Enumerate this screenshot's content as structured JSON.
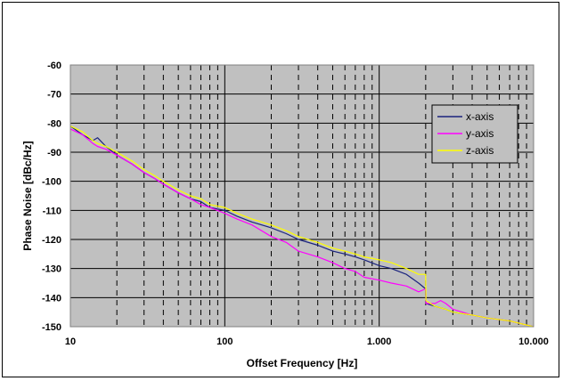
{
  "chart_data": {
    "type": "line",
    "title": "",
    "xlabel": "Offset Frequency [Hz]",
    "ylabel": "Phase Noise [dBc/Hz]",
    "xscale": "log",
    "xlim": [
      10,
      10000
    ],
    "ylim": [
      -150,
      -60
    ],
    "x_tick_labels": [
      "10",
      "100",
      "1.000",
      "10.000"
    ],
    "y_tick_labels": [
      "-60",
      "-70",
      "-80",
      "-90",
      "-100",
      "-110",
      "-120",
      "-130",
      "-140",
      "-150"
    ],
    "grid": true,
    "legend_position": "top-right",
    "series": [
      {
        "name": "x-axis",
        "color": "#1a237e",
        "points": [
          [
            10,
            -81
          ],
          [
            12,
            -84
          ],
          [
            14,
            -86
          ],
          [
            15,
            -85
          ],
          [
            17,
            -88
          ],
          [
            20,
            -91
          ],
          [
            25,
            -94
          ],
          [
            30,
            -97
          ],
          [
            35,
            -99
          ],
          [
            40,
            -101
          ],
          [
            50,
            -104
          ],
          [
            60,
            -106
          ],
          [
            70,
            -107
          ],
          [
            80,
            -109
          ],
          [
            100,
            -110
          ],
          [
            120,
            -112
          ],
          [
            150,
            -114
          ],
          [
            200,
            -116
          ],
          [
            250,
            -118
          ],
          [
            300,
            -120
          ],
          [
            400,
            -122
          ],
          [
            500,
            -124
          ],
          [
            600,
            -125
          ],
          [
            700,
            -126
          ],
          [
            800,
            -127
          ],
          [
            1000,
            -129
          ],
          [
            1200,
            -130
          ],
          [
            1500,
            -132
          ],
          [
            1800,
            -135
          ],
          [
            2000,
            -137
          ],
          [
            2010,
            -142
          ],
          [
            2300,
            -143
          ],
          [
            2700,
            -144
          ],
          [
            3000,
            -145
          ],
          [
            4000,
            -146
          ],
          [
            5000,
            -147
          ],
          [
            7000,
            -148
          ],
          [
            10000,
            -150
          ]
        ]
      },
      {
        "name": "y-axis",
        "color": "#ff00ff",
        "points": [
          [
            10,
            -82
          ],
          [
            12,
            -84
          ],
          [
            14,
            -87
          ],
          [
            15,
            -88
          ],
          [
            17,
            -89
          ],
          [
            20,
            -91
          ],
          [
            25,
            -94
          ],
          [
            30,
            -97
          ],
          [
            35,
            -99
          ],
          [
            40,
            -101
          ],
          [
            50,
            -104
          ],
          [
            60,
            -106
          ],
          [
            70,
            -108
          ],
          [
            80,
            -109
          ],
          [
            100,
            -111
          ],
          [
            120,
            -113
          ],
          [
            150,
            -115
          ],
          [
            200,
            -119
          ],
          [
            250,
            -121
          ],
          [
            300,
            -124
          ],
          [
            400,
            -126
          ],
          [
            500,
            -128
          ],
          [
            600,
            -130
          ],
          [
            700,
            -131
          ],
          [
            800,
            -133
          ],
          [
            1000,
            -134
          ],
          [
            1200,
            -135
          ],
          [
            1500,
            -136
          ],
          [
            1800,
            -138
          ],
          [
            2000,
            -137
          ],
          [
            2010,
            -142
          ],
          [
            2300,
            -142
          ],
          [
            2500,
            -141
          ],
          [
            2700,
            -142
          ],
          [
            3000,
            -144
          ],
          [
            4000,
            -146
          ],
          [
            5000,
            -147
          ],
          [
            7000,
            -148
          ],
          [
            10000,
            -150
          ]
        ]
      },
      {
        "name": "z-axis",
        "color": "#ffff00",
        "points": [
          [
            10,
            -81
          ],
          [
            12,
            -83
          ],
          [
            14,
            -86
          ],
          [
            15,
            -87
          ],
          [
            17,
            -88
          ],
          [
            20,
            -90
          ],
          [
            25,
            -93
          ],
          [
            30,
            -96
          ],
          [
            35,
            -98
          ],
          [
            40,
            -100
          ],
          [
            50,
            -103
          ],
          [
            60,
            -105
          ],
          [
            70,
            -106
          ],
          [
            80,
            -108
          ],
          [
            100,
            -109
          ],
          [
            120,
            -111
          ],
          [
            150,
            -113
          ],
          [
            200,
            -115
          ],
          [
            250,
            -117
          ],
          [
            300,
            -119
          ],
          [
            400,
            -121
          ],
          [
            500,
            -123
          ],
          [
            600,
            -124
          ],
          [
            700,
            -125
          ],
          [
            800,
            -126
          ],
          [
            1000,
            -127
          ],
          [
            1200,
            -128
          ],
          [
            1500,
            -130
          ],
          [
            1800,
            -132
          ],
          [
            2000,
            -132
          ],
          [
            2010,
            -141
          ],
          [
            2300,
            -143
          ],
          [
            2700,
            -144
          ],
          [
            3000,
            -145
          ],
          [
            4000,
            -146
          ],
          [
            5000,
            -147
          ],
          [
            7000,
            -148
          ],
          [
            10000,
            -150
          ]
        ]
      }
    ]
  }
}
